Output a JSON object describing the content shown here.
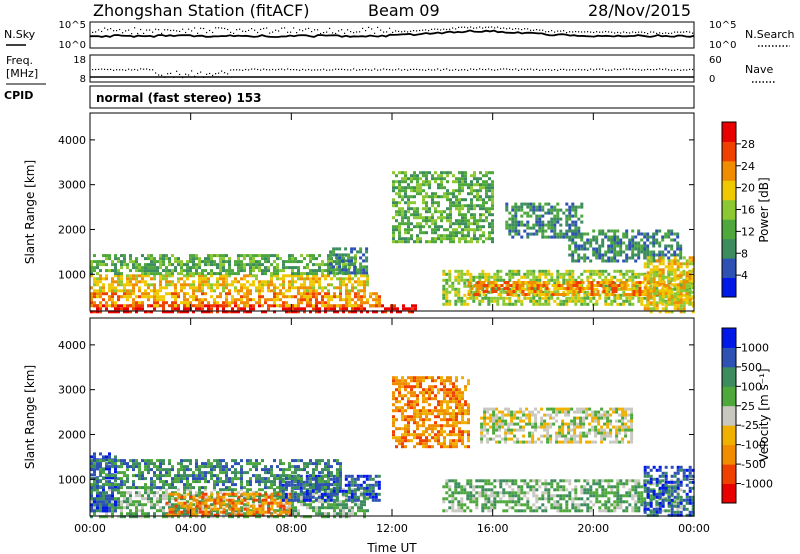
{
  "header": {
    "station": "Zhongshan Station (fitACF)",
    "beam": "Beam 09",
    "date": "28/Nov/2015"
  },
  "noise_panel": {
    "left_label": "N.Sky",
    "left_ticks": [
      "10^5",
      "10^0"
    ],
    "right_label": "N.Search",
    "right_ticks": [
      "10^5",
      "10^0"
    ]
  },
  "freq_panel": {
    "left_label_1": "Freq.",
    "left_label_2": "[MHz]",
    "left_ticks": [
      "18",
      "8"
    ],
    "right_label": "Nave",
    "right_ticks": [
      "60",
      "0"
    ]
  },
  "cpid": {
    "label": "CPID",
    "value": "normal (fast stereo) 153"
  },
  "colors": {
    "power": [
      "#0018e8",
      "#2e52b4",
      "#3c8c5e",
      "#4ea83c",
      "#8cc832",
      "#f0c800",
      "#f08c00",
      "#f04000",
      "#e80000"
    ],
    "velocity": [
      "#e80000",
      "#f04000",
      "#f08c00",
      "#f0b000",
      "#c8c8c0",
      "#4ea83c",
      "#3c8c5e",
      "#2e52b4",
      "#0018e8"
    ]
  },
  "power_colorbar": {
    "label": "Power [dB]",
    "ticks": [
      "4",
      "8",
      "12",
      "16",
      "20",
      "24",
      "28"
    ]
  },
  "velocity_colorbar": {
    "label": "Velocity [m s⁻¹]",
    "ticks": [
      "-1000",
      "-500",
      "-100",
      "-25",
      "25",
      "100",
      "500",
      "1000"
    ]
  },
  "chart_data": [
    {
      "type": "heatmap",
      "name": "power",
      "ylabel": "Slant Range [km]",
      "x_range_hours": [
        0,
        24
      ],
      "y_range_km": [
        180,
        4600
      ],
      "yticks": [
        "1000",
        "2000",
        "3000",
        "4000"
      ],
      "colorbar_range_db": [
        0,
        32
      ],
      "regions": [
        {
          "t0": 0.0,
          "t1": 13.0,
          "r0": 180,
          "r1": 330,
          "level": 8
        },
        {
          "t0": 0.0,
          "t1": 11.5,
          "r0": 330,
          "r1": 600,
          "level": 6
        },
        {
          "t0": 0.0,
          "t1": 11.0,
          "r0": 600,
          "r1": 1000,
          "level": 5
        },
        {
          "t0": 0.0,
          "t1": 10.5,
          "r0": 1000,
          "r1": 1450,
          "level": 3
        },
        {
          "t0": 9.5,
          "t1": 11.0,
          "r0": 1000,
          "r1": 1600,
          "level": 2
        },
        {
          "t0": 12.0,
          "t1": 16.0,
          "r0": 1700,
          "r1": 3300,
          "level": 3
        },
        {
          "t0": 16.5,
          "t1": 19.5,
          "r0": 1800,
          "r1": 2600,
          "level": 2
        },
        {
          "t0": 19.0,
          "t1": 23.5,
          "r0": 1300,
          "r1": 2000,
          "level": 2
        },
        {
          "t0": 14.0,
          "t1": 24.0,
          "r0": 350,
          "r1": 1100,
          "level": 4
        },
        {
          "t0": 15.0,
          "t1": 23.0,
          "r0": 550,
          "r1": 850,
          "level": 6
        },
        {
          "t0": 22.0,
          "t1": 24.0,
          "r0": 180,
          "r1": 1400,
          "level": 5
        }
      ]
    },
    {
      "type": "heatmap",
      "name": "velocity",
      "ylabel": "Slant Range [km]",
      "xlabel": "Time UT",
      "x_range_hours": [
        0,
        24
      ],
      "y_range_km": [
        180,
        4600
      ],
      "xticks": [
        "00:00",
        "04:00",
        "08:00",
        "12:00",
        "16:00",
        "20:00",
        "00:00"
      ],
      "yticks": [
        "1000",
        "2000",
        "3000",
        "4000"
      ],
      "regions": [
        {
          "t0": 0.0,
          "t1": 11.0,
          "r0": 180,
          "r1": 800,
          "level": 5
        },
        {
          "t0": 3.0,
          "t1": 8.0,
          "r0": 180,
          "r1": 700,
          "level": 2
        },
        {
          "t0": 0.0,
          "t1": 1.0,
          "r0": 300,
          "r1": 1600,
          "level": 7
        },
        {
          "t0": 7.5,
          "t1": 11.5,
          "r0": 500,
          "r1": 1100,
          "level": 7
        },
        {
          "t0": 0.0,
          "t1": 10.0,
          "r0": 800,
          "r1": 1450,
          "level": 6
        },
        {
          "t0": 12.0,
          "t1": 15.0,
          "r0": 1700,
          "r1": 3300,
          "level": 2
        },
        {
          "t0": 15.5,
          "t1": 21.5,
          "r0": 1800,
          "r1": 2600,
          "level": 4
        },
        {
          "t0": 14.0,
          "t1": 23.5,
          "r0": 300,
          "r1": 1000,
          "level": 5
        },
        {
          "t0": 22.0,
          "t1": 24.0,
          "r0": 180,
          "r1": 1300,
          "level": 7
        }
      ]
    }
  ]
}
